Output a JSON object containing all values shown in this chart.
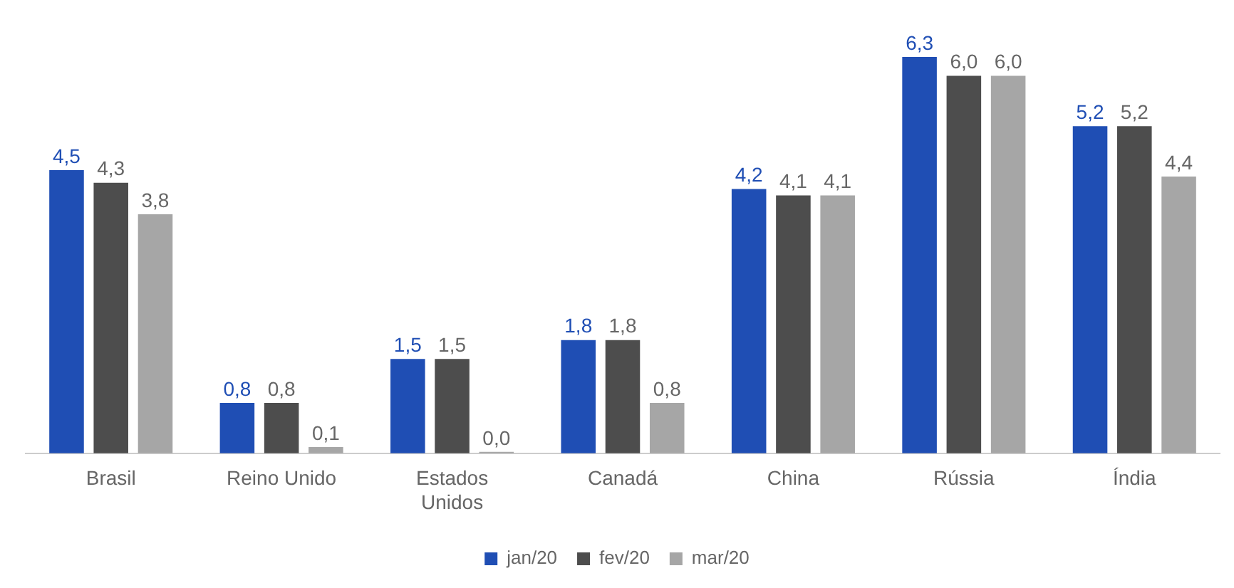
{
  "chart_data": {
    "type": "bar",
    "categories": [
      "Brasil",
      "Reino Unido",
      "Estados Unidos",
      "Canadá",
      "China",
      "Rússia",
      "Índia"
    ],
    "series": [
      {
        "name": "jan/20",
        "color": "#1f4eb4",
        "values": [
          4.5,
          0.8,
          1.5,
          1.8,
          4.2,
          6.3,
          5.2
        ],
        "value_labels": [
          "4,5",
          "0,8",
          "1,5",
          "1,8",
          "4,2",
          "6,3",
          "5,2"
        ]
      },
      {
        "name": "fev/20",
        "color": "#4d4d4d",
        "values": [
          4.3,
          0.8,
          1.5,
          1.8,
          4.1,
          6.0,
          5.2
        ],
        "value_labels": [
          "4,3",
          "0,8",
          "1,5",
          "1,8",
          "4,1",
          "6,0",
          "5,2"
        ]
      },
      {
        "name": "mar/20",
        "color": "#a6a6a6",
        "values": [
          3.8,
          0.1,
          0.0,
          0.8,
          4.1,
          6.0,
          4.4
        ],
        "value_labels": [
          "3,8",
          "0,1",
          "0,0",
          "0,8",
          "4,1",
          "6,0",
          "4,4"
        ]
      }
    ],
    "ylim": [
      0,
      6.3
    ],
    "tick_labels": "x",
    "grid": false,
    "legend": "bottom"
  }
}
